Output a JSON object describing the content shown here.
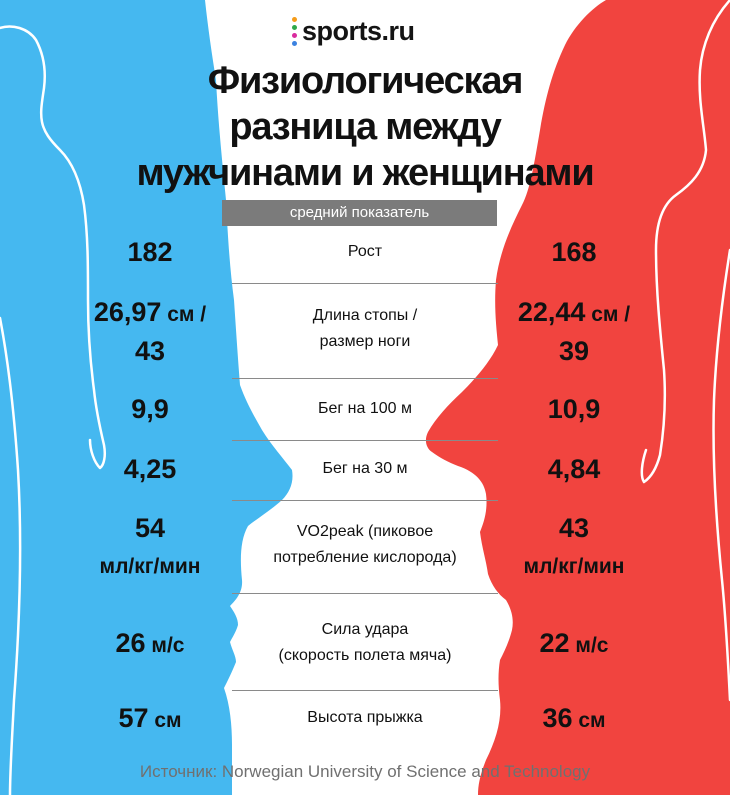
{
  "colors": {
    "male": "#45b8f0",
    "female": "#f1443f",
    "header_bar": "#7b7b7b",
    "logo_dots": [
      "#f59c1a",
      "#2ea84a",
      "#d92b9e",
      "#3b82e0",
      "#f1443f"
    ]
  },
  "brand": {
    "name": "sports.ru"
  },
  "title": {
    "lines": [
      "Физиологическая",
      "разница между",
      "мужчинами и женщинами"
    ]
  },
  "subtitle": "средний показатель",
  "rows": [
    {
      "label": [
        "Рост"
      ],
      "male": [
        [
          {
            "t": "182",
            "u": false
          }
        ]
      ],
      "female": [
        [
          {
            "t": "168",
            "u": false
          }
        ]
      ]
    },
    {
      "label": [
        "Длина стопы /",
        "размер ноги"
      ],
      "male": [
        [
          {
            "t": "26,97",
            "u": false
          },
          {
            "t": " см /",
            "u": true
          }
        ],
        [
          {
            "t": "43",
            "u": false
          }
        ]
      ],
      "female": [
        [
          {
            "t": "22,44",
            "u": false
          },
          {
            "t": " см /",
            "u": true
          }
        ],
        [
          {
            "t": "39",
            "u": false
          }
        ]
      ]
    },
    {
      "label": [
        "Бег на 100 м"
      ],
      "male": [
        [
          {
            "t": "9,9",
            "u": false
          }
        ]
      ],
      "female": [
        [
          {
            "t": "10,9",
            "u": false
          }
        ]
      ]
    },
    {
      "label": [
        "Бег на 30 м"
      ],
      "male": [
        [
          {
            "t": "4,25",
            "u": false
          }
        ]
      ],
      "female": [
        [
          {
            "t": "4,84",
            "u": false
          }
        ]
      ]
    },
    {
      "label": [
        "VO2peak (пиковое",
        "потребление кислорода)"
      ],
      "male": [
        [
          {
            "t": "54",
            "u": false
          }
        ],
        [
          {
            "t": "мл/кг/мин",
            "u": true
          }
        ]
      ],
      "female": [
        [
          {
            "t": "43",
            "u": false
          }
        ],
        [
          {
            "t": "мл/кг/мин",
            "u": true
          }
        ]
      ]
    },
    {
      "label": [
        "Сила удара",
        "(скорость полета мяча)"
      ],
      "male": [
        [
          {
            "t": "26",
            "u": false
          },
          {
            "t": " м/с",
            "u": true
          }
        ]
      ],
      "female": [
        [
          {
            "t": "22",
            "u": false
          },
          {
            "t": " м/с",
            "u": true
          }
        ]
      ]
    },
    {
      "label": [
        "Высота прыжка"
      ],
      "male": [
        [
          {
            "t": "57",
            "u": false
          },
          {
            "t": " см",
            "u": true
          }
        ]
      ],
      "female": [
        [
          {
            "t": "36",
            "u": false
          },
          {
            "t": " см",
            "u": true
          }
        ]
      ]
    }
  ],
  "source": "Источник: Norwegian University of Science and Technology"
}
